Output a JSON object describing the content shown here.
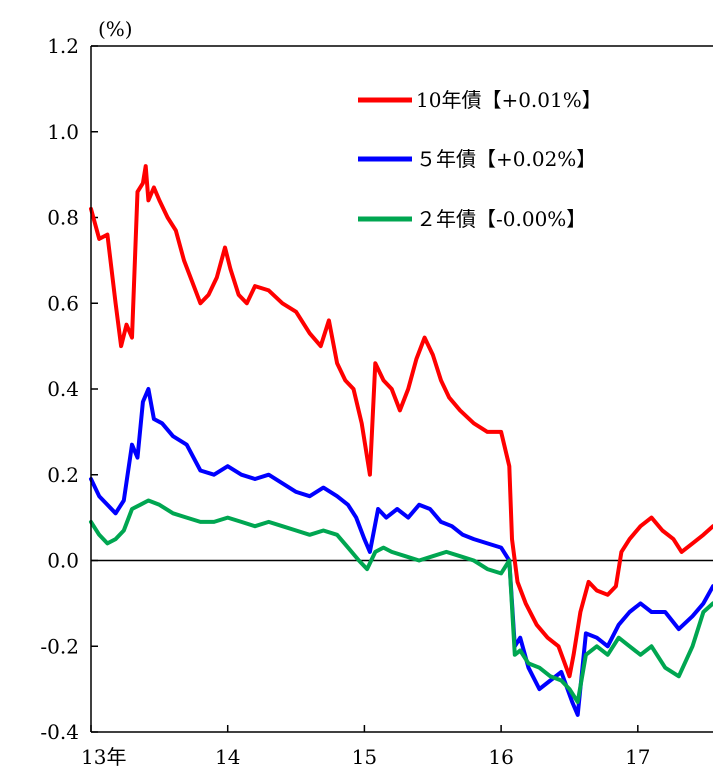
{
  "chart_data": {
    "type": "line",
    "unit_label": "(%)",
    "title": "",
    "xlabel": "",
    "ylabel": "",
    "ylim": [
      -0.4,
      1.2
    ],
    "y_ticks": [
      "1.2",
      "1.0",
      "0.8",
      "0.6",
      "0.4",
      "0.2",
      "0.0",
      "-0.2",
      "-0.4"
    ],
    "y_tick_values": [
      1.2,
      1.0,
      0.8,
      0.6,
      0.4,
      0.2,
      0.0,
      -0.2,
      -0.4
    ],
    "xlim": [
      2013.0,
      2017.55
    ],
    "x_ticks": [
      "13年",
      "14",
      "15",
      "16",
      "17"
    ],
    "x_tick_values": [
      2013,
      2014,
      2015,
      2016,
      2017
    ],
    "grid": false,
    "zero_line": true,
    "legend_position": "top-right",
    "series": [
      {
        "name": "10年債【+0.01%】",
        "color": "#ff0000",
        "x": [
          2013.0,
          2013.06,
          2013.12,
          2013.18,
          2013.22,
          2013.26,
          2013.3,
          2013.34,
          2013.38,
          2013.4,
          2013.42,
          2013.46,
          2013.5,
          2013.56,
          2013.62,
          2013.68,
          2013.74,
          2013.8,
          2013.86,
          2013.92,
          2013.98,
          2014.02,
          2014.08,
          2014.14,
          2014.2,
          2014.3,
          2014.4,
          2014.5,
          2014.6,
          2014.68,
          2014.74,
          2014.8,
          2014.86,
          2014.92,
          2014.98,
          2015.04,
          2015.08,
          2015.14,
          2015.2,
          2015.26,
          2015.32,
          2015.38,
          2015.44,
          2015.5,
          2015.56,
          2015.62,
          2015.7,
          2015.8,
          2015.9,
          2016.0,
          2016.06,
          2016.08,
          2016.12,
          2016.18,
          2016.26,
          2016.34,
          2016.42,
          2016.5,
          2016.53,
          2016.58,
          2016.64,
          2016.7,
          2016.78,
          2016.84,
          2016.88,
          2016.94,
          2017.02,
          2017.1,
          2017.18,
          2017.26,
          2017.32,
          2017.4,
          2017.48,
          2017.55
        ],
        "values": [
          0.82,
          0.75,
          0.76,
          0.6,
          0.5,
          0.55,
          0.52,
          0.86,
          0.88,
          0.92,
          0.84,
          0.87,
          0.84,
          0.8,
          0.77,
          0.7,
          0.65,
          0.6,
          0.62,
          0.66,
          0.73,
          0.68,
          0.62,
          0.6,
          0.64,
          0.63,
          0.6,
          0.58,
          0.53,
          0.5,
          0.56,
          0.46,
          0.42,
          0.4,
          0.32,
          0.2,
          0.46,
          0.42,
          0.4,
          0.35,
          0.4,
          0.47,
          0.52,
          0.48,
          0.42,
          0.38,
          0.35,
          0.32,
          0.3,
          0.3,
          0.22,
          0.05,
          -0.05,
          -0.1,
          -0.15,
          -0.18,
          -0.2,
          -0.27,
          -0.22,
          -0.12,
          -0.05,
          -0.07,
          -0.08,
          -0.06,
          0.02,
          0.05,
          0.08,
          0.1,
          0.07,
          0.05,
          0.02,
          0.04,
          0.06,
          0.08
        ]
      },
      {
        "name": "５年債【+0.02%】",
        "color": "#0000ff",
        "x": [
          2013.0,
          2013.06,
          2013.12,
          2013.18,
          2013.24,
          2013.3,
          2013.34,
          2013.38,
          2013.42,
          2013.46,
          2013.52,
          2013.6,
          2013.7,
          2013.8,
          2013.9,
          2014.0,
          2014.1,
          2014.2,
          2014.3,
          2014.4,
          2014.5,
          2014.6,
          2014.7,
          2014.8,
          2014.88,
          2014.94,
          2015.0,
          2015.04,
          2015.1,
          2015.16,
          2015.24,
          2015.32,
          2015.4,
          2015.48,
          2015.56,
          2015.64,
          2015.72,
          2015.8,
          2015.9,
          2016.0,
          2016.06,
          2016.1,
          2016.14,
          2016.2,
          2016.28,
          2016.36,
          2016.44,
          2016.52,
          2016.56,
          2016.62,
          2016.7,
          2016.78,
          2016.86,
          2016.94,
          2017.02,
          2017.1,
          2017.2,
          2017.3,
          2017.4,
          2017.48,
          2017.55
        ],
        "values": [
          0.19,
          0.15,
          0.13,
          0.11,
          0.14,
          0.27,
          0.24,
          0.37,
          0.4,
          0.33,
          0.32,
          0.29,
          0.27,
          0.21,
          0.2,
          0.22,
          0.2,
          0.19,
          0.2,
          0.18,
          0.16,
          0.15,
          0.17,
          0.15,
          0.13,
          0.1,
          0.05,
          0.02,
          0.12,
          0.1,
          0.12,
          0.1,
          0.13,
          0.12,
          0.09,
          0.08,
          0.06,
          0.05,
          0.04,
          0.03,
          0.0,
          -0.2,
          -0.18,
          -0.25,
          -0.3,
          -0.28,
          -0.26,
          -0.33,
          -0.36,
          -0.17,
          -0.18,
          -0.2,
          -0.15,
          -0.12,
          -0.1,
          -0.12,
          -0.12,
          -0.16,
          -0.13,
          -0.1,
          -0.06
        ]
      },
      {
        "name": "２年債【-0.00%】",
        "color": "#00a651",
        "x": [
          2013.0,
          2013.06,
          2013.12,
          2013.18,
          2013.24,
          2013.3,
          2013.36,
          2013.42,
          2013.5,
          2013.6,
          2013.7,
          2013.8,
          2013.9,
          2014.0,
          2014.1,
          2014.2,
          2014.3,
          2014.4,
          2014.5,
          2014.6,
          2014.7,
          2014.8,
          2014.88,
          2014.96,
          2015.02,
          2015.08,
          2015.14,
          2015.2,
          2015.3,
          2015.4,
          2015.5,
          2015.6,
          2015.7,
          2015.8,
          2015.9,
          2016.0,
          2016.06,
          2016.1,
          2016.14,
          2016.2,
          2016.28,
          2016.36,
          2016.44,
          2016.5,
          2016.56,
          2016.62,
          2016.7,
          2016.78,
          2016.86,
          2016.94,
          2017.02,
          2017.1,
          2017.2,
          2017.3,
          2017.4,
          2017.48,
          2017.55
        ],
        "values": [
          0.09,
          0.06,
          0.04,
          0.05,
          0.07,
          0.12,
          0.13,
          0.14,
          0.13,
          0.11,
          0.1,
          0.09,
          0.09,
          0.1,
          0.09,
          0.08,
          0.09,
          0.08,
          0.07,
          0.06,
          0.07,
          0.06,
          0.03,
          0.0,
          -0.02,
          0.02,
          0.03,
          0.02,
          0.01,
          0.0,
          0.01,
          0.02,
          0.01,
          0.0,
          -0.02,
          -0.03,
          0.0,
          -0.22,
          -0.21,
          -0.24,
          -0.25,
          -0.27,
          -0.28,
          -0.3,
          -0.33,
          -0.22,
          -0.2,
          -0.22,
          -0.18,
          -0.2,
          -0.22,
          -0.2,
          -0.25,
          -0.27,
          -0.2,
          -0.12,
          -0.1
        ]
      }
    ]
  }
}
